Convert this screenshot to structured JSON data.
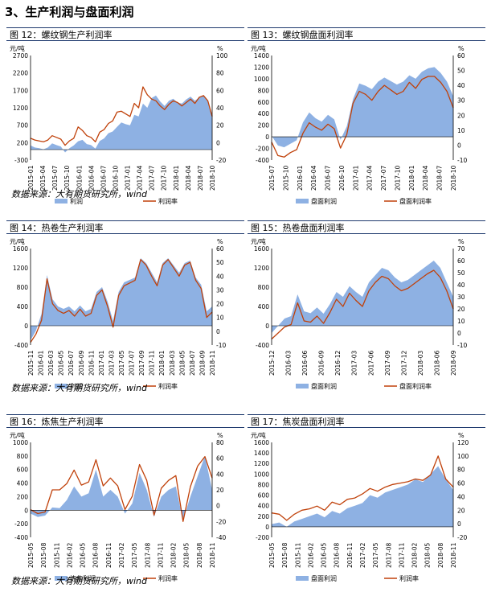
{
  "page": {
    "section_title": "3、生产利润与盘面利润",
    "source_1": "数据来源：大有期货研究所，wind",
    "source_2": "数据来源：大有期货研究所，wind",
    "source_3": "数据来源：大有期货研究所，wind"
  },
  "colors": {
    "bar": "#8eb1e3",
    "line": "#c0410a"
  },
  "chart_data": [
    {
      "id": "c12",
      "type": "area",
      "title": "图 12：螺纹钢生产利润率",
      "y_unit_left": "元/吨",
      "y_unit_right": "%",
      "ylim_left": [
        -300,
        2700
      ],
      "yticks_left": [
        "2700",
        "2200",
        "1700",
        "1200",
        "700",
        "200",
        "-300"
      ],
      "ylim_right": [
        -20,
        100
      ],
      "yticks_right": [
        "100",
        "80",
        "60",
        "40",
        "20",
        "0",
        "-20"
      ],
      "xticks": [
        "2015-01",
        "2015-04",
        "2015-07",
        "2015-10",
        "2016-01",
        "2016-04",
        "2016-07",
        "2016-10",
        "2017-01",
        "2017-04",
        "2017-07",
        "2017-10",
        "2018-01",
        "2018-04",
        "2018-07",
        "2018-10"
      ],
      "series": [
        {
          "name": "利润",
          "kind": "area",
          "axis": "left",
          "values": [
            120,
            60,
            40,
            10,
            60,
            180,
            130,
            90,
            -80,
            40,
            120,
            240,
            280,
            160,
            130,
            30,
            250,
            320,
            470,
            520,
            650,
            780,
            730,
            700,
            1000,
            950,
            1320,
            1200,
            1480,
            1550,
            1380,
            1250,
            1400,
            1460,
            1350,
            1320,
            1440,
            1520,
            1400,
            1500,
            1560,
            1380,
            900
          ]
        },
        {
          "name": "利润率",
          "kind": "line",
          "axis": "right",
          "values": [
            5,
            3,
            2,
            1,
            3,
            8,
            6,
            4,
            -3,
            2,
            5,
            18,
            14,
            8,
            6,
            1,
            12,
            15,
            22,
            25,
            35,
            36,
            33,
            30,
            45,
            40,
            64,
            55,
            50,
            48,
            42,
            38,
            44,
            48,
            46,
            42,
            46,
            50,
            45,
            52,
            54,
            48,
            30
          ]
        }
      ]
    },
    {
      "id": "c13",
      "type": "area",
      "title": "图 13：螺纹钢盘面利润率",
      "y_unit_left": "元/吨",
      "y_unit_right": "%",
      "ylim_left": [
        -400,
        1400
      ],
      "yticks_left": [
        "1400",
        "1200",
        "1000",
        "800",
        "600",
        "400",
        "200",
        "0",
        "-200",
        "-400"
      ],
      "ylim_right": [
        -10,
        60
      ],
      "yticks_right": [
        "60",
        "50",
        "40",
        "30",
        "20",
        "10",
        "0",
        "-10"
      ],
      "xticks": [
        "2015-07",
        "2015-10",
        "2016-01",
        "2016-04",
        "2016-07",
        "2016-10",
        "2017-01",
        "2017-04",
        "2017-07",
        "2017-10",
        "2018-01",
        "2018-04",
        "2018-07",
        "2018-10"
      ],
      "series": [
        {
          "name": "盘面利润",
          "kind": "area",
          "axis": "left",
          "values": [
            20,
            -150,
            -180,
            -120,
            -60,
            250,
            420,
            320,
            260,
            380,
            300,
            -50,
            180,
            650,
            920,
            880,
            820,
            950,
            1020,
            960,
            900,
            950,
            1060,
            1000,
            1120,
            1180,
            1200,
            1100,
            950,
            700
          ]
        },
        {
          "name": "盘面利润率",
          "kind": "line",
          "axis": "right",
          "values": [
            2,
            -7,
            -8,
            -5,
            -3,
            8,
            15,
            12,
            10,
            14,
            11,
            -2,
            7,
            28,
            36,
            34,
            30,
            36,
            40,
            37,
            34,
            36,
            42,
            38,
            44,
            46,
            46,
            42,
            36,
            25
          ]
        }
      ]
    },
    {
      "id": "c14",
      "type": "area",
      "title": "图 14：热卷生产利润率",
      "y_unit_left": "元/吨",
      "y_unit_right": "%",
      "ylim_left": [
        -400,
        1600
      ],
      "yticks_left": [
        "1600",
        "1200",
        "800",
        "400",
        "0",
        "-400"
      ],
      "ylim_right": [
        -10,
        60
      ],
      "yticks_right": [
        "60",
        "50",
        "40",
        "30",
        "20",
        "10",
        "0",
        "-10"
      ],
      "xticks": [
        "2015-11",
        "2016-01",
        "2016-03",
        "2016-05",
        "2016-07",
        "2016-09",
        "2016-11",
        "2017-01",
        "2017-03",
        "2017-05",
        "2017-07",
        "2017-09",
        "2017-11",
        "2018-01",
        "2018-03",
        "2018-05",
        "2018-07",
        "2018-09",
        "2018-11"
      ],
      "series": [
        {
          "name": "利润",
          "kind": "area",
          "axis": "left",
          "values": [
            -300,
            -100,
            250,
            1050,
            550,
            400,
            350,
            400,
            300,
            420,
            300,
            350,
            700,
            800,
            500,
            100,
            700,
            900,
            950,
            1000,
            1400,
            1300,
            1100,
            900,
            1300,
            1400,
            1250,
            1100,
            1300,
            1350,
            1000,
            850,
            300,
            400
          ]
        },
        {
          "name": "利润率",
          "kind": "line",
          "axis": "right",
          "values": [
            -8,
            -2,
            8,
            38,
            20,
            15,
            13,
            15,
            11,
            16,
            11,
            13,
            26,
            30,
            18,
            3,
            26,
            33,
            35,
            37,
            52,
            48,
            40,
            33,
            48,
            52,
            46,
            40,
            48,
            50,
            37,
            31,
            10,
            14
          ]
        }
      ]
    },
    {
      "id": "c15",
      "type": "area",
      "title": "图 15：热卷盘面利润率",
      "y_unit_left": "元/吨",
      "y_unit_right": "%",
      "ylim_left": [
        -400,
        1600
      ],
      "yticks_left": [
        "1600",
        "1200",
        "800",
        "400",
        "0",
        "-400"
      ],
      "ylim_right": [
        -10,
        70
      ],
      "yticks_right": [
        "70",
        "60",
        "50",
        "40",
        "30",
        "20",
        "10",
        "0",
        "-10"
      ],
      "xticks": [
        "2015-12",
        "2016-03",
        "2016-06",
        "2016-09",
        "2016-12",
        "2017-03",
        "2017-06",
        "2017-09",
        "2017-12",
        "2018-03",
        "2018-06",
        "2018-09"
      ],
      "series": [
        {
          "name": "盘面利润",
          "kind": "area",
          "axis": "left",
          "values": [
            -150,
            0,
            150,
            200,
            650,
            300,
            260,
            380,
            250,
            450,
            700,
            600,
            820,
            700,
            600,
            900,
            1050,
            1200,
            1150,
            1000,
            900,
            950,
            1050,
            1150,
            1250,
            1350,
            1200,
            900,
            600
          ]
        },
        {
          "name": "盘面利润率",
          "kind": "line",
          "axis": "right",
          "values": [
            -5,
            0,
            5,
            7,
            25,
            10,
            9,
            14,
            8,
            17,
            28,
            22,
            33,
            27,
            22,
            35,
            42,
            47,
            45,
            39,
            35,
            37,
            41,
            45,
            49,
            52,
            46,
            35,
            20
          ]
        }
      ]
    },
    {
      "id": "c16",
      "type": "area",
      "title": "图 16：炼焦生产利润率",
      "y_unit_left": "元/吨",
      "y_unit_right": "%",
      "ylim_left": [
        -400,
        1000
      ],
      "yticks_left": [
        "1000",
        "800",
        "600",
        "400",
        "200",
        "0",
        "-200",
        "-400"
      ],
      "ylim_right": [
        -40,
        80
      ],
      "yticks_right": [
        "80",
        "60",
        "40",
        "20",
        "0",
        "-20",
        "-40"
      ],
      "xticks": [
        "2015-05",
        "2015-08",
        "2015-11",
        "2016-02",
        "2016-05",
        "2016-08",
        "2016-11",
        "2017-02",
        "2017-05",
        "2017-08",
        "2017-11",
        "2018-02",
        "2018-05",
        "2018-08",
        "2018-11"
      ],
      "series": [
        {
          "name": "炼焦利润",
          "kind": "area",
          "axis": "left",
          "values": [
            -50,
            -100,
            -80,
            40,
            30,
            150,
            350,
            200,
            250,
            600,
            200,
            300,
            200,
            -50,
            100,
            550,
            300,
            -100,
            200,
            300,
            350,
            -150,
            200,
            500,
            800,
            300
          ]
        },
        {
          "name": "利润率",
          "kind": "line",
          "axis": "right",
          "values": [
            -5,
            -10,
            -8,
            20,
            20,
            28,
            45,
            26,
            30,
            58,
            25,
            35,
            25,
            -5,
            12,
            52,
            32,
            -12,
            22,
            32,
            38,
            -20,
            24,
            50,
            62,
            35
          ]
        }
      ]
    },
    {
      "id": "c17",
      "type": "area",
      "title": "图 17：焦炭盘面利润率",
      "y_unit_left": "元/吨",
      "y_unit_right": "%",
      "ylim_left": [
        -200,
        1600
      ],
      "yticks_left": [
        "1600",
        "1400",
        "1200",
        "1000",
        "800",
        "600",
        "400",
        "200",
        "0",
        "-200"
      ],
      "ylim_right": [
        -20,
        120
      ],
      "yticks_right": [
        "120",
        "100",
        "80",
        "60",
        "40",
        "20",
        "0",
        "-20"
      ],
      "xticks": [
        "2015-05",
        "2015-08",
        "2015-11",
        "2016-02",
        "2016-05",
        "2016-08",
        "2016-11",
        "2017-02",
        "2017-05",
        "2017-08",
        "2017-11",
        "2018-02",
        "2018-05",
        "2018-08",
        "2018-11"
      ],
      "series": [
        {
          "name": "盘面利润",
          "kind": "area",
          "axis": "left",
          "values": [
            50,
            80,
            0,
            100,
            150,
            200,
            250,
            180,
            300,
            250,
            350,
            400,
            450,
            600,
            550,
            650,
            700,
            750,
            800,
            900,
            850,
            1000,
            1150,
            900,
            700
          ]
        },
        {
          "name": "利润率",
          "kind": "line",
          "axis": "right",
          "values": [
            16,
            14,
            5,
            14,
            20,
            22,
            26,
            20,
            32,
            28,
            36,
            38,
            44,
            52,
            48,
            54,
            58,
            60,
            62,
            66,
            64,
            72,
            100,
            66,
            54
          ]
        }
      ]
    }
  ]
}
